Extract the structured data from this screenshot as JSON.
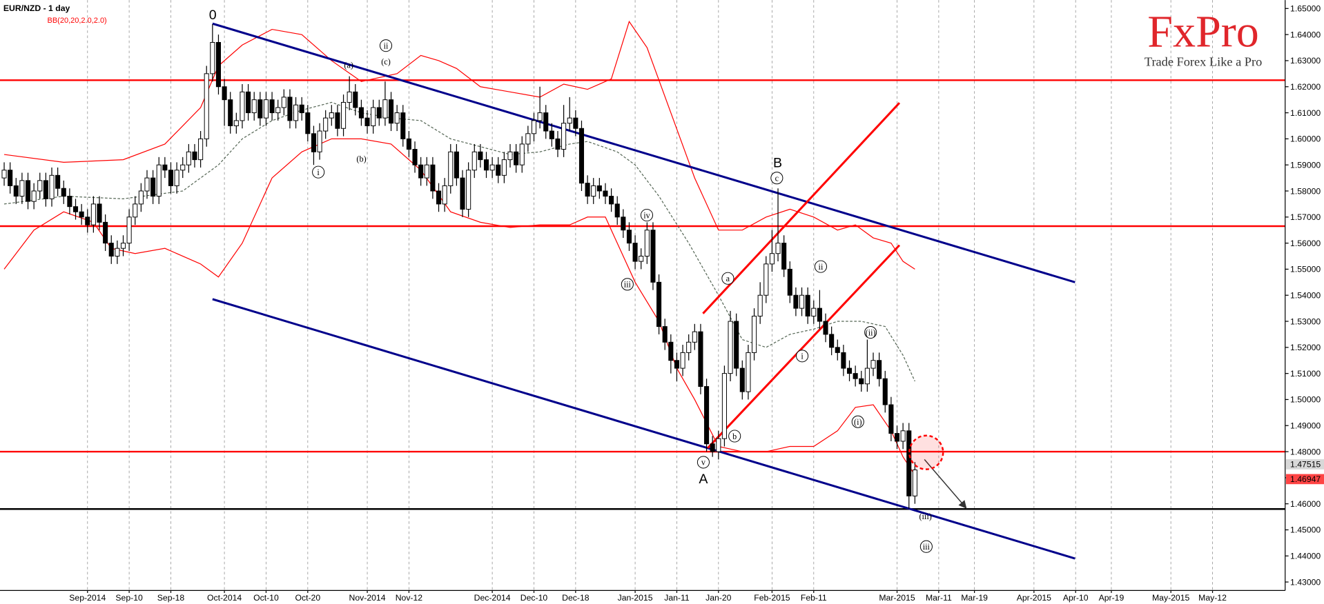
{
  "chart_data": {
    "type": "candlestick",
    "title": "EUR/NZD - 1 day",
    "indicator": "BB(20,20,2.0,2.0)",
    "logo": {
      "brand": "FxPro",
      "tagline": "Trade Forex Like a Pro"
    },
    "xlim": [
      -0.7,
      215.2
    ],
    "ylim": [
      1.42676,
      1.65324
    ],
    "xticks": [
      {
        "value": 14,
        "label": "Sep-2014"
      },
      {
        "value": 21,
        "label": "Sep-10"
      },
      {
        "value": 28,
        "label": "Sep-18"
      },
      {
        "value": 37,
        "label": "Oct-2014"
      },
      {
        "value": 44,
        "label": "Oct-10"
      },
      {
        "value": 51,
        "label": "Oct-20"
      },
      {
        "value": 61,
        "label": "Nov-2014"
      },
      {
        "value": 68,
        "label": "Nov-12"
      },
      {
        "value": 82,
        "label": "Dec-2014"
      },
      {
        "value": 89,
        "label": "Dec-10"
      },
      {
        "value": 96,
        "label": "Dec-18"
      },
      {
        "value": 106,
        "label": "Jan-2015"
      },
      {
        "value": 113,
        "label": "Jan-11"
      },
      {
        "value": 120,
        "label": "Jan-20"
      },
      {
        "value": 129,
        "label": "Feb-2015"
      },
      {
        "value": 136,
        "label": "Feb-11"
      },
      {
        "value": 150,
        "label": "Mar-2015"
      },
      {
        "value": 157,
        "label": "Mar-11"
      },
      {
        "value": 163,
        "label": "Mar-19"
      },
      {
        "value": 173,
        "label": "Apr-2015"
      },
      {
        "value": 180,
        "label": "Apr-10"
      },
      {
        "value": 186,
        "label": "Apr-19"
      },
      {
        "value": 196,
        "label": "May-2015"
      },
      {
        "value": 203,
        "label": "May-12"
      }
    ],
    "yticks": [
      {
        "value": 1.43,
        "label": "1.43000"
      },
      {
        "value": 1.44,
        "label": "1.44000"
      },
      {
        "value": 1.45,
        "label": "1.45000"
      },
      {
        "value": 1.46,
        "label": "1.46000"
      },
      {
        "value": 1.47,
        "label": "1.47000"
      },
      {
        "value": 1.48,
        "label": "1.48000"
      },
      {
        "value": 1.49,
        "label": "1.49000"
      },
      {
        "value": 1.5,
        "label": "1.50000"
      },
      {
        "value": 1.51,
        "label": "1.51000"
      },
      {
        "value": 1.52,
        "label": "1.52000"
      },
      {
        "value": 1.53,
        "label": "1.53000"
      },
      {
        "value": 1.54,
        "label": "1.54000"
      },
      {
        "value": 1.55,
        "label": "1.55000"
      },
      {
        "value": 1.56,
        "label": "1.56000"
      },
      {
        "value": 1.57,
        "label": "1.57000"
      },
      {
        "value": 1.58,
        "label": "1.58000"
      },
      {
        "value": 1.59,
        "label": "1.59000"
      },
      {
        "value": 1.6,
        "label": "1.60000"
      },
      {
        "value": 1.61,
        "label": "1.61000"
      },
      {
        "value": 1.62,
        "label": "1.62000"
      },
      {
        "value": 1.63,
        "label": "1.63000"
      },
      {
        "value": 1.64,
        "label": "1.64000"
      },
      {
        "value": 1.65,
        "label": "1.65000"
      }
    ],
    "up_color": "#ffffff",
    "down_color": "#000000",
    "open": [
      1.585,
      1.588,
      1.582,
      1.578,
      1.584,
      1.576,
      1.58,
      1.584,
      1.577,
      1.586,
      1.581,
      1.578,
      1.574,
      1.572,
      1.57,
      1.567,
      1.575,
      1.568,
      1.56,
      1.555,
      1.558,
      1.56,
      1.57,
      1.575,
      1.58,
      1.585,
      1.578,
      1.59,
      1.588,
      1.582,
      1.588,
      1.59,
      1.595,
      1.592,
      1.6,
      1.625,
      1.637,
      1.62,
      1.615,
      1.605,
      1.607,
      1.618,
      1.61,
      1.615,
      1.608,
      1.615,
      1.61,
      1.612,
      1.616,
      1.607,
      1.613,
      1.61,
      1.602,
      1.595,
      1.603,
      1.608,
      1.61,
      1.604,
      1.614,
      1.618,
      1.612,
      1.608,
      1.605,
      1.612,
      1.608,
      1.615,
      1.606,
      1.61,
      1.6,
      1.596,
      1.59,
      1.585,
      1.59,
      1.58,
      1.575,
      1.582,
      1.595,
      1.585,
      1.573,
      1.588,
      1.595,
      1.592,
      1.588,
      1.59,
      1.586,
      1.592,
      1.595,
      1.59,
      1.598,
      1.602,
      1.607,
      1.61,
      1.603,
      1.6,
      1.596,
      1.606,
      1.608,
      1.604,
      1.583,
      1.578,
      1.582,
      1.58,
      1.578,
      1.575,
      1.57,
      1.565,
      1.56,
      1.553,
      1.555,
      1.565,
      1.545,
      1.528,
      1.522,
      1.515,
      1.512,
      1.518,
      1.522,
      1.526,
      1.505,
      1.483,
      1.48,
      1.485,
      1.51,
      1.53,
      1.512,
      1.503,
      1.518,
      1.532,
      1.54,
      1.552,
      1.556,
      1.56,
      1.55,
      1.54,
      1.535,
      1.54,
      1.532,
      1.535,
      1.53,
      1.525,
      1.52,
      1.518,
      1.512,
      1.51,
      1.508,
      1.506,
      1.512,
      1.515,
      1.508,
      1.498,
      1.487,
      1.484,
      1.488,
      1.463
    ],
    "high": [
      1.591,
      1.591,
      1.585,
      1.587,
      1.587,
      1.583,
      1.587,
      1.587,
      1.589,
      1.589,
      1.584,
      1.581,
      1.577,
      1.575,
      1.573,
      1.578,
      1.578,
      1.571,
      1.563,
      1.561,
      1.563,
      1.573,
      1.578,
      1.583,
      1.588,
      1.588,
      1.593,
      1.593,
      1.591,
      1.591,
      1.593,
      1.598,
      1.598,
      1.603,
      1.628,
      1.644,
      1.64,
      1.623,
      1.618,
      1.61,
      1.621,
      1.621,
      1.618,
      1.618,
      1.618,
      1.618,
      1.615,
      1.619,
      1.619,
      1.616,
      1.616,
      1.613,
      1.605,
      1.606,
      1.611,
      1.613,
      1.613,
      1.617,
      1.624,
      1.621,
      1.615,
      1.611,
      1.615,
      1.615,
      1.622,
      1.618,
      1.613,
      1.613,
      1.603,
      1.599,
      1.593,
      1.593,
      1.593,
      1.583,
      1.585,
      1.598,
      1.598,
      1.588,
      1.591,
      1.598,
      1.598,
      1.595,
      1.593,
      1.593,
      1.595,
      1.598,
      1.598,
      1.601,
      1.605,
      1.61,
      1.62,
      1.613,
      1.606,
      1.603,
      1.613,
      1.616,
      1.611,
      1.607,
      1.586,
      1.585,
      1.585,
      1.583,
      1.581,
      1.578,
      1.573,
      1.568,
      1.563,
      1.558,
      1.568,
      1.568,
      1.548,
      1.531,
      1.525,
      1.518,
      1.521,
      1.525,
      1.529,
      1.529,
      1.508,
      1.486,
      1.488,
      1.513,
      1.534,
      1.533,
      1.515,
      1.521,
      1.535,
      1.545,
      1.555,
      1.565,
      1.581,
      1.563,
      1.553,
      1.543,
      1.543,
      1.543,
      1.538,
      1.542,
      1.533,
      1.528,
      1.523,
      1.521,
      1.515,
      1.513,
      1.511,
      1.523,
      1.518,
      1.518,
      1.511,
      1.501,
      1.49,
      1.491,
      1.491,
      1.476
    ],
    "low": [
      1.582,
      1.579,
      1.575,
      1.575,
      1.573,
      1.573,
      1.577,
      1.574,
      1.574,
      1.578,
      1.575,
      1.571,
      1.569,
      1.567,
      1.564,
      1.564,
      1.565,
      1.557,
      1.552,
      1.552,
      1.555,
      1.557,
      1.567,
      1.572,
      1.577,
      1.575,
      1.575,
      1.585,
      1.579,
      1.579,
      1.585,
      1.587,
      1.589,
      1.589,
      1.597,
      1.622,
      1.617,
      1.605,
      1.602,
      1.602,
      1.604,
      1.607,
      1.607,
      1.605,
      1.605,
      1.607,
      1.607,
      1.609,
      1.604,
      1.604,
      1.607,
      1.599,
      1.59,
      1.592,
      1.6,
      1.605,
      1.601,
      1.601,
      1.611,
      1.609,
      1.605,
      1.602,
      1.602,
      1.605,
      1.605,
      1.603,
      1.603,
      1.597,
      1.593,
      1.587,
      1.582,
      1.582,
      1.577,
      1.572,
      1.572,
      1.579,
      1.582,
      1.57,
      1.57,
      1.585,
      1.589,
      1.585,
      1.585,
      1.583,
      1.583,
      1.589,
      1.587,
      1.587,
      1.595,
      1.599,
      1.604,
      1.6,
      1.597,
      1.593,
      1.593,
      1.603,
      1.601,
      1.58,
      1.575,
      1.575,
      1.577,
      1.575,
      1.572,
      1.567,
      1.562,
      1.557,
      1.55,
      1.55,
      1.552,
      1.542,
      1.525,
      1.519,
      1.51,
      1.507,
      1.509,
      1.515,
      1.519,
      1.502,
      1.48,
      1.478,
      1.477,
      1.482,
      1.507,
      1.509,
      1.5,
      1.5,
      1.515,
      1.529,
      1.537,
      1.549,
      1.553,
      1.547,
      1.537,
      1.532,
      1.532,
      1.529,
      1.529,
      1.527,
      1.522,
      1.517,
      1.515,
      1.509,
      1.507,
      1.505,
      1.503,
      1.503,
      1.509,
      1.505,
      1.495,
      1.484,
      1.481,
      1.481,
      1.458,
      1.46
    ],
    "close": [
      1.588,
      1.582,
      1.578,
      1.584,
      1.576,
      1.58,
      1.584,
      1.577,
      1.586,
      1.581,
      1.578,
      1.574,
      1.572,
      1.57,
      1.567,
      1.575,
      1.568,
      1.56,
      1.555,
      1.558,
      1.56,
      1.57,
      1.575,
      1.58,
      1.585,
      1.578,
      1.59,
      1.588,
      1.582,
      1.588,
      1.59,
      1.595,
      1.592,
      1.6,
      1.625,
      1.637,
      1.62,
      1.615,
      1.605,
      1.607,
      1.618,
      1.61,
      1.615,
      1.608,
      1.615,
      1.61,
      1.612,
      1.616,
      1.607,
      1.613,
      1.61,
      1.602,
      1.595,
      1.603,
      1.608,
      1.61,
      1.604,
      1.614,
      1.618,
      1.612,
      1.608,
      1.605,
      1.612,
      1.608,
      1.615,
      1.606,
      1.61,
      1.6,
      1.596,
      1.59,
      1.585,
      1.59,
      1.58,
      1.575,
      1.582,
      1.595,
      1.585,
      1.573,
      1.588,
      1.595,
      1.592,
      1.588,
      1.59,
      1.586,
      1.592,
      1.595,
      1.59,
      1.598,
      1.602,
      1.607,
      1.61,
      1.603,
      1.6,
      1.596,
      1.606,
      1.608,
      1.604,
      1.583,
      1.578,
      1.582,
      1.58,
      1.578,
      1.575,
      1.57,
      1.565,
      1.56,
      1.553,
      1.555,
      1.565,
      1.545,
      1.528,
      1.522,
      1.515,
      1.512,
      1.518,
      1.522,
      1.526,
      1.505,
      1.483,
      1.48,
      1.485,
      1.51,
      1.53,
      1.512,
      1.503,
      1.518,
      1.532,
      1.54,
      1.552,
      1.556,
      1.56,
      1.55,
      1.54,
      1.535,
      1.54,
      1.532,
      1.535,
      1.53,
      1.525,
      1.52,
      1.518,
      1.512,
      1.51,
      1.508,
      1.506,
      1.512,
      1.515,
      1.508,
      1.498,
      1.487,
      1.484,
      1.488,
      1.463,
      1.473
    ],
    "bands": [
      {
        "color": "#ff0000",
        "dash": false,
        "x": [
          0,
          10,
          20,
          27,
          33,
          36,
          40,
          45,
          50,
          55,
          60,
          66,
          70,
          73,
          76,
          80,
          85,
          90,
          94,
          98,
          102,
          105,
          108,
          112,
          116,
          120,
          124,
          128,
          132,
          136,
          140,
          143,
          146,
          149,
          151,
          153
        ],
        "values": [
          1.594,
          1.591,
          1.592,
          1.598,
          1.612,
          1.628,
          1.636,
          1.642,
          1.64,
          1.63,
          1.622,
          1.625,
          1.632,
          1.63,
          1.627,
          1.62,
          1.618,
          1.616,
          1.621,
          1.619,
          1.623,
          1.645,
          1.635,
          1.61,
          1.585,
          1.565,
          1.565,
          1.57,
          1.573,
          1.57,
          1.565,
          1.567,
          1.562,
          1.56,
          1.553,
          1.55
        ]
      },
      {
        "color": "#556655",
        "dash": true,
        "x": [
          0,
          10,
          20,
          30,
          36,
          40,
          45,
          50,
          55,
          60,
          65,
          70,
          75,
          80,
          85,
          90,
          95,
          98,
          103,
          106,
          110,
          115,
          120,
          124,
          128,
          132,
          136,
          140,
          144,
          148,
          151,
          153
        ],
        "values": [
          1.575,
          1.578,
          1.577,
          1.58,
          1.59,
          1.6,
          1.607,
          1.611,
          1.614,
          1.61,
          1.608,
          1.607,
          1.6,
          1.597,
          1.594,
          1.595,
          1.598,
          1.599,
          1.595,
          1.59,
          1.578,
          1.56,
          1.54,
          1.523,
          1.52,
          1.525,
          1.527,
          1.53,
          1.53,
          1.528,
          1.517,
          1.507
        ]
      },
      {
        "color": "#ff0000",
        "dash": false,
        "x": [
          0,
          5,
          10,
          15,
          18,
          22,
          27,
          33,
          36,
          40,
          45,
          50,
          55,
          60,
          65,
          70,
          75,
          80,
          85,
          90,
          95,
          98,
          101,
          103,
          106,
          110,
          113,
          116,
          120,
          124,
          128,
          132,
          136,
          140,
          143,
          146,
          149,
          151,
          153
        ],
        "values": [
          1.55,
          1.565,
          1.572,
          1.568,
          1.558,
          1.556,
          1.558,
          1.552,
          1.547,
          1.56,
          1.585,
          1.595,
          1.6,
          1.6,
          1.598,
          1.588,
          1.572,
          1.568,
          1.566,
          1.567,
          1.567,
          1.57,
          1.57,
          1.56,
          1.545,
          1.53,
          1.512,
          1.5,
          1.482,
          1.48,
          1.48,
          1.482,
          1.482,
          1.488,
          1.497,
          1.498,
          1.488,
          1.478,
          1.471
        ]
      }
    ],
    "hlines": [
      {
        "value": 1.6225,
        "color": "#ff0000"
      },
      {
        "value": 1.5665,
        "color": "#ff0000"
      },
      {
        "value": 1.48,
        "color": "#ff0000"
      },
      {
        "value": 1.458,
        "color": "#000000"
      }
    ],
    "trendlines": [
      {
        "x": [
          35,
          179.9
        ],
        "y": [
          1.6442,
          1.545
        ],
        "color": "#00008b"
      },
      {
        "x": [
          35,
          179.9
        ],
        "y": [
          1.5385,
          1.439
        ],
        "color": "#00008b"
      },
      {
        "x": [
          117.4,
          150.4
        ],
        "y": [
          1.533,
          1.6138
        ],
        "color": "#ff0000"
      },
      {
        "x": [
          118.2,
          150.4
        ],
        "y": [
          1.4814,
          1.5592
        ],
        "color": "#ff0000"
      }
    ],
    "arrow": {
      "x": [
        154.6,
        161.6
      ],
      "y": [
        1.477,
        1.4584
      ]
    },
    "target": {
      "x": 154.9,
      "y": 1.4797
    },
    "price_labels": [
      {
        "value": 1.47515,
        "label": "1.47515",
        "color": "#d8d8d8"
      },
      {
        "value": 1.46947,
        "label": "1.46947",
        "color": "#ff4444"
      }
    ],
    "wave_labels": [
      "0",
      "(a)",
      "(c)",
      "ii",
      "i",
      "(b)",
      "iv",
      "iii",
      "a",
      "b",
      "v",
      "A",
      "B",
      "c",
      "i",
      "ii",
      "(ii)",
      "(i)",
      "(iii)",
      "iii"
    ]
  }
}
